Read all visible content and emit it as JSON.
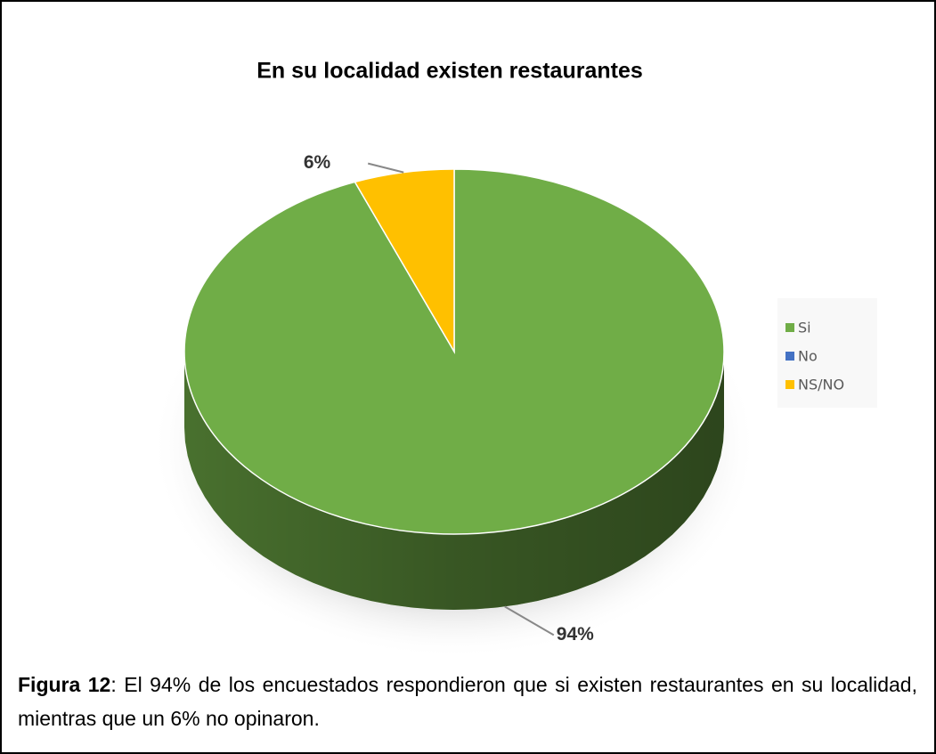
{
  "chart_data": {
    "type": "pie",
    "title": "En su localidad existen restaurantes",
    "categories": [
      "Si",
      "No",
      "NS/NO"
    ],
    "values": [
      94,
      0,
      6
    ],
    "value_labels": [
      "94%",
      null,
      "6%"
    ],
    "colors": [
      "#70ad47",
      "#4472c4",
      "#ffc000"
    ],
    "legend": "right"
  },
  "caption": {
    "label": "Figura 12",
    "text": ": El 94% de los encuestados respondieron que si existen restaurantes en su localidad, mientras que un 6% no opinaron."
  }
}
